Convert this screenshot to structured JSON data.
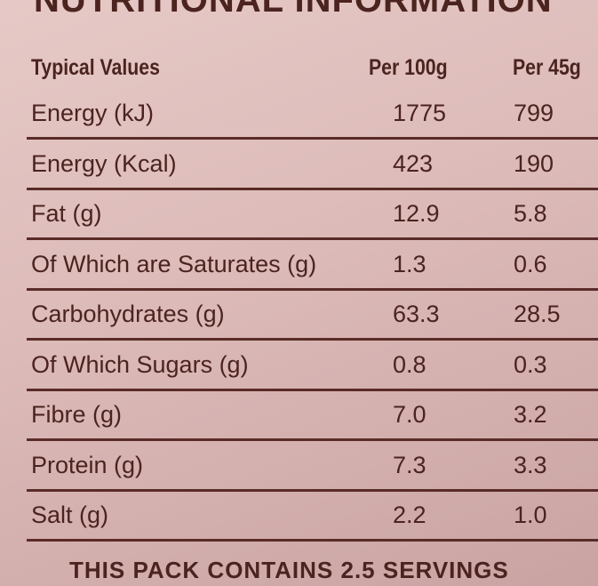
{
  "title": "NUTRITIONAL INFORMATION",
  "table": {
    "header": [
      "Typical Values",
      "Per 100g",
      "Per 45g"
    ],
    "rows": [
      [
        "Energy (kJ)",
        "1775",
        "799"
      ],
      [
        "Energy (Kcal)",
        "423",
        "190"
      ],
      [
        "Fat (g)",
        "12.9",
        "5.8"
      ],
      [
        "Of Which are Saturates (g)",
        "1.3",
        "0.6"
      ],
      [
        "Carbohydrates (g)",
        "63.3",
        "28.5"
      ],
      [
        "Of Which Sugars (g)",
        "0.8",
        "0.3"
      ],
      [
        "Fibre (g)",
        "7.0",
        "3.2"
      ],
      [
        "Protein (g)",
        "7.3",
        "3.3"
      ],
      [
        "Salt (g)",
        "2.2",
        "1.0"
      ]
    ]
  },
  "footer": "THIS PACK CONTAINS 2.5 SERVINGS"
}
